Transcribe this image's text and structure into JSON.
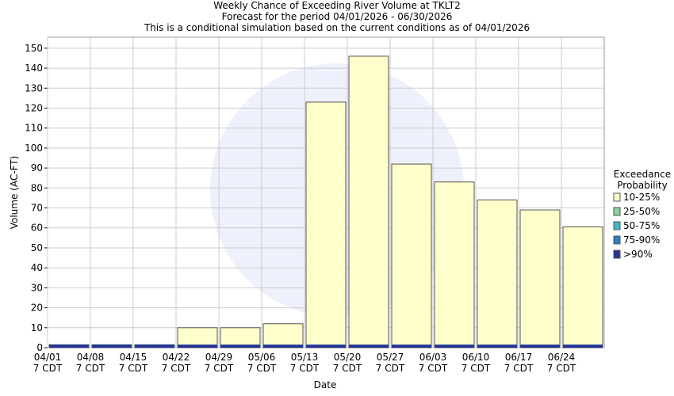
{
  "chart_data": {
    "type": "bar",
    "title": "Weekly Chance of Exceeding River Volume at TKLT2",
    "subtitle": "Forecast for the period 04/01/2026 - 06/30/2026",
    "note": "This is a conditional simulation based on the current conditions as of 04/01/2026",
    "x_label": "Date",
    "y_label": "Volume (AC-FT)",
    "legend_title": [
      "Exceedance",
      "Probability"
    ],
    "categories": [
      "04/01 7 CDT",
      "04/08 7 CDT",
      "04/15 7 CDT",
      "04/22 7 CDT",
      "04/29 7 CDT",
      "05/06 7 CDT",
      "05/13 7 CDT",
      "05/20 7 CDT",
      "05/27 7 CDT",
      "06/03 7 CDT",
      "06/10 7 CDT",
      "06/17 7 CDT",
      "06/24 7 CDT"
    ],
    "series": [
      {
        "name": "10-25%",
        "color": "#ffffcc",
        "values": [
          1.5,
          1.5,
          1.5,
          10,
          10,
          12,
          123,
          146,
          92,
          83,
          74,
          69,
          60.5
        ]
      },
      {
        "name": "25-50%",
        "color": "#8fcf9f",
        "values": [
          1.5,
          1.5,
          1.5,
          1.5,
          1.5,
          1.5,
          1.5,
          1.5,
          1.5,
          1.5,
          1.5,
          1.5,
          1.5
        ]
      },
      {
        "name": "50-75%",
        "color": "#41b6c4",
        "values": [
          1.5,
          1.5,
          1.5,
          1.5,
          1.5,
          1.5,
          1.5,
          1.5,
          1.5,
          1.5,
          1.5,
          1.5,
          1.5
        ]
      },
      {
        "name": "75-90%",
        "color": "#2c7fb8",
        "values": [
          1.5,
          1.5,
          1.5,
          1.5,
          1.5,
          1.5,
          1.5,
          1.5,
          1.5,
          1.5,
          1.5,
          1.5,
          1.5
        ]
      },
      {
        "name": ">90%",
        "color": "#253494",
        "values": [
          1.5,
          1.5,
          1.5,
          1.5,
          1.5,
          1.5,
          1.5,
          1.5,
          1.5,
          1.5,
          1.5,
          1.5,
          1.5
        ]
      }
    ],
    "ylim": [
      0,
      155.5
    ],
    "yticks": [
      0,
      10,
      20,
      30,
      40,
      50,
      60,
      70,
      80,
      90,
      100,
      110,
      120,
      130,
      140,
      150
    ],
    "grid": true
  }
}
